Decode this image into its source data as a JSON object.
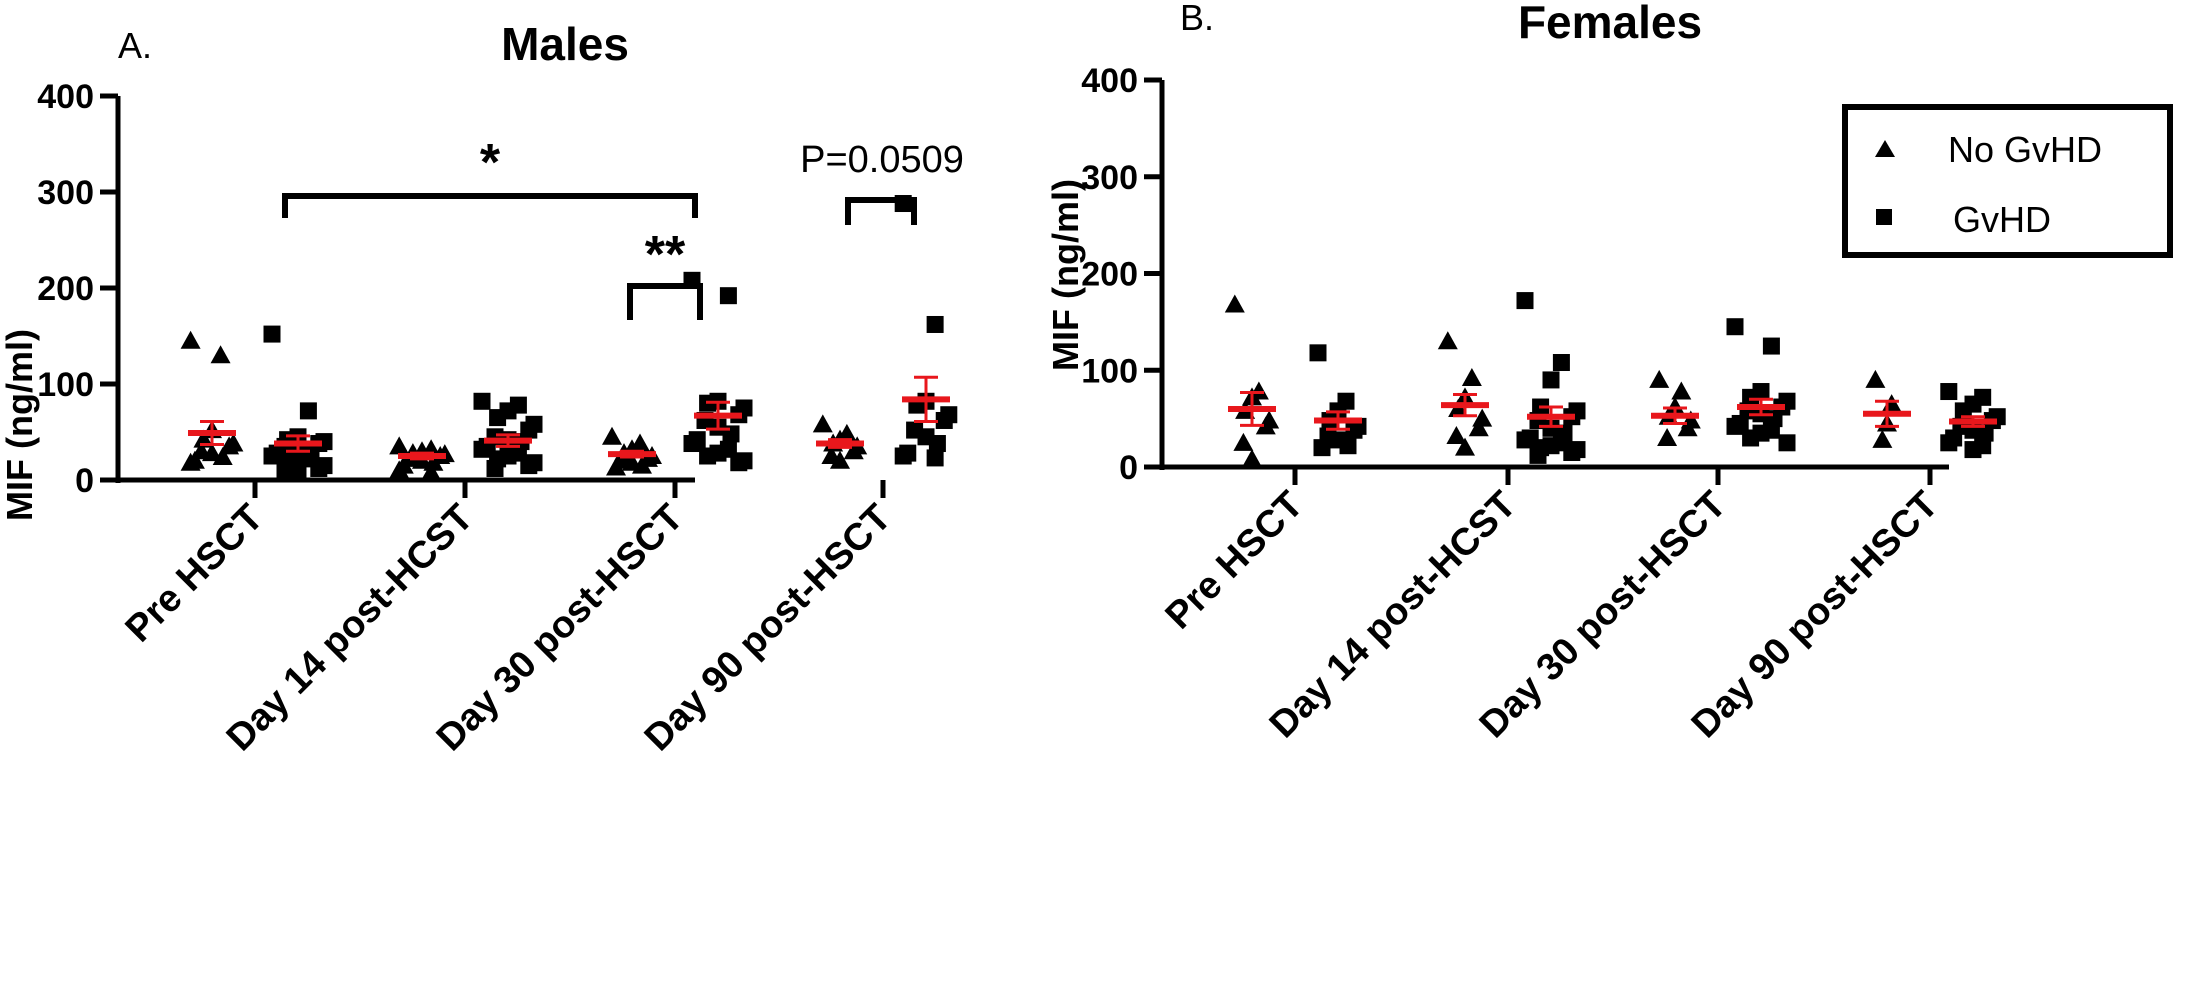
{
  "chart_data": [
    {
      "type": "scatter",
      "panel": "A.",
      "title": "Males",
      "ylabel": "MIF (ng/ml)",
      "ylim": [
        0,
        400
      ],
      "yticks": [
        0,
        100,
        200,
        300,
        400
      ],
      "categories": [
        "Pre HSCT",
        "Day 14 post-HCST",
        "Day 30 post-HSCT",
        "Day 90 post-HSCT"
      ],
      "series": [
        {
          "name": "No GvHD",
          "marker": "triangle",
          "values": [
            [
              145,
              130,
              52,
              42,
              38,
              35,
              30,
              28,
              24,
              20,
              18
            ],
            [
              35,
              32,
              30,
              28,
              27,
              25,
              22,
              20,
              18,
              15,
              10,
              8
            ],
            [
              45,
              38,
              32,
              28,
              25,
              22,
              20,
              18,
              15,
              13
            ],
            [
              58,
              48,
              42,
              38,
              35,
              30,
              25,
              20
            ]
          ],
          "means": [
            49,
            25,
            27,
            38
          ],
          "sem": [
            12,
            3,
            3,
            4
          ]
        },
        {
          "name": "GvHD",
          "marker": "square",
          "values": [
            [
              152,
              72,
              45,
              42,
              40,
              38,
              35,
              32,
              30,
              28,
              25,
              22,
              20,
              18,
              15,
              12,
              10,
              8
            ],
            [
              82,
              78,
              72,
              65,
              58,
              52,
              45,
              42,
              40,
              35,
              32,
              28,
              25,
              22,
              18,
              15,
              12
            ],
            [
              208,
              192,
              82,
              80,
              75,
              68,
              62,
              55,
              48,
              42,
              38,
              32,
              28,
              25,
              20,
              18
            ],
            [
              288,
              162,
              82,
              78,
              68,
              62,
              52,
              45,
              38,
              28,
              25,
              23
            ]
          ],
          "means": [
            38,
            41,
            67,
            84
          ],
          "sem": [
            8,
            6,
            14,
            23
          ]
        }
      ],
      "annotations": [
        {
          "label": "*",
          "from": "Pre HSCT",
          "to": "Day 30 post-HSCT"
        },
        {
          "label": "**",
          "from": "Day 30 post-HSCT",
          "to": "Day 30 post-HSCT"
        },
        {
          "label": "P=0.0509",
          "from": "Day 90 post-HSCT",
          "to": "Day 90 post-HSCT"
        }
      ]
    },
    {
      "type": "scatter",
      "panel": "B.",
      "title": "Females",
      "ylabel": "MIF (ng/ml)",
      "ylim": [
        0,
        400
      ],
      "yticks": [
        0,
        100,
        200,
        300,
        400
      ],
      "categories": [
        "Pre HSCT",
        "Day 14 post-HCST",
        "Day 30 post-HSCT",
        "Day 90 post-HSCT"
      ],
      "series": [
        {
          "name": "No GvHD",
          "marker": "triangle",
          "values": [
            [
              168,
              78,
              72,
              58,
              48,
              42,
              25,
              8
            ],
            [
              130,
              92,
              72,
              60,
              50,
              40,
              32,
              20
            ],
            [
              90,
              78,
              62,
              52,
              48,
              40,
              30
            ],
            [
              90,
              65,
              45,
              28
            ]
          ],
          "means": [
            60,
            64,
            53,
            55
          ],
          "sem": [
            17,
            11,
            8,
            13
          ]
        },
        {
          "name": "GvHD",
          "marker": "square",
          "values": [
            [
              118,
              68,
              58,
              48,
              42,
              38,
              32,
              28,
              22,
              20
            ],
            [
              172,
              108,
              90,
              62,
              58,
              52,
              48,
              40,
              35,
              30,
              28,
              25,
              22,
              20,
              18,
              15,
              12
            ],
            [
              145,
              125,
              78,
              72,
              68,
              62,
              58,
              55,
              50,
              45,
              42,
              38,
              35,
              30,
              25
            ],
            [
              78,
              72,
              65,
              58,
              52,
              48,
              42,
              38,
              35,
              30,
              25,
              22,
              18
            ]
          ],
          "means": [
            48,
            52,
            62,
            47
          ],
          "sem": [
            9,
            10,
            8,
            5
          ]
        }
      ],
      "legend": {
        "placement": "top-right",
        "entries": [
          "No GvHD",
          "GvHD"
        ]
      }
    }
  ],
  "colors": {
    "mean_bar": "#e8171c",
    "marker": "#000000",
    "axis": "#000000"
  }
}
